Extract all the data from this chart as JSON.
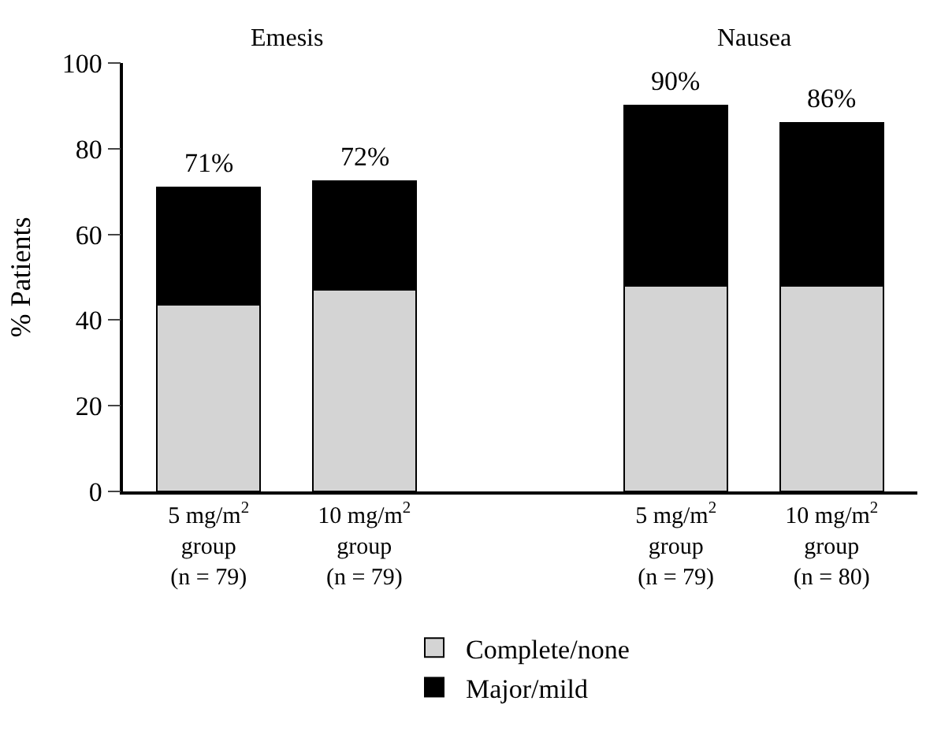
{
  "chart_data": {
    "type": "bar",
    "stacked": true,
    "ylabel": "% Patients",
    "categories": [
      "5 mg/m$^{2}$\ngroup\n(n = 79)",
      "10 mg/m$^{2}$\ngroup\n(n = 79)",
      null,
      "5 mg/m$^{2}$\ngroup\n(n = 79)",
      "10 mg/m$^{2}$\ngroup\n(n = 80)"
    ],
    "series": [
      {
        "name": "Complete/none",
        "color": "#d4d4d4",
        "values": [
          43.5,
          47,
          null,
          48,
          48
        ]
      },
      {
        "name": "Major/mild",
        "color": "#000000",
        "values": [
          27.5,
          25.5,
          null,
          42,
          38
        ]
      }
    ],
    "totals": [
      "71%",
      "72%",
      null,
      "90%",
      "86%"
    ],
    "annotations": [
      "Emesis",
      "Nausea"
    ],
    "ylim": [
      0,
      100
    ],
    "yticks": [
      0,
      20,
      40,
      60,
      80,
      100
    ],
    "legend": "bottom"
  }
}
